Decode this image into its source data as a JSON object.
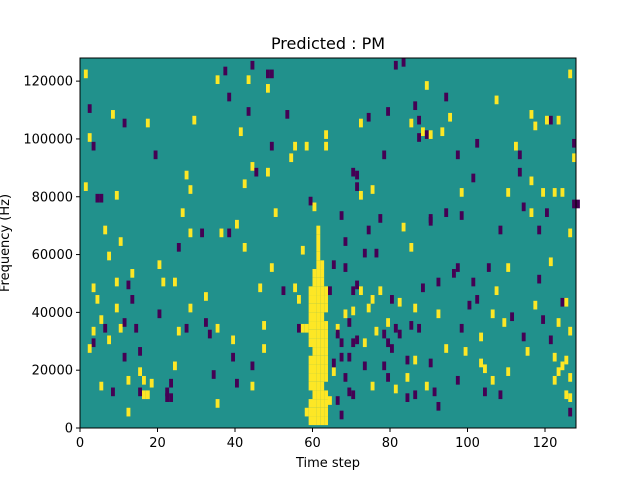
{
  "chart_data": {
    "type": "heatmap",
    "title": "Predicted : PM",
    "xlabel": "Time step",
    "ylabel": "Frequency (Hz)",
    "xlim": [
      0,
      128
    ],
    "ylim": [
      0,
      128000
    ],
    "xticks": [
      0,
      20,
      40,
      60,
      80,
      100,
      120
    ],
    "yticks": [
      0,
      20000,
      40000,
      60000,
      80000,
      100000,
      120000
    ],
    "colors": {
      "background": "#21918c",
      "high": "#fde725",
      "low": "#440154"
    },
    "n_time_steps": 128,
    "n_frequency_bins": 128,
    "cell_value_range": [
      -1,
      1
    ],
    "dense_band": {
      "time_steps": [
        59,
        63
      ],
      "frequency_max": 70000,
      "value": 1
    },
    "cells": [
      [
        1,
        123000,
        1
      ],
      [
        2,
        111000,
        -1
      ],
      [
        2,
        101000,
        1
      ],
      [
        3,
        98000,
        -1
      ],
      [
        3,
        49000,
        1
      ],
      [
        4,
        45000,
        1
      ],
      [
        1,
        84000,
        1
      ],
      [
        4,
        80000,
        -1
      ],
      [
        5,
        80000,
        -1
      ],
      [
        6,
        69000,
        1
      ],
      [
        7,
        60000,
        1
      ],
      [
        5,
        38000,
        1
      ],
      [
        3,
        34000,
        1
      ],
      [
        3,
        30000,
        -1
      ],
      [
        2,
        28000,
        1
      ],
      [
        6,
        35000,
        -1
      ],
      [
        7,
        31000,
        1
      ],
      [
        5,
        15000,
        1
      ],
      [
        8,
        13000,
        -1
      ],
      [
        8,
        109000,
        1
      ],
      [
        9,
        81000,
        1
      ],
      [
        10,
        65000,
        1
      ],
      [
        9,
        51000,
        1
      ],
      [
        9,
        42000,
        1
      ],
      [
        10,
        35000,
        1
      ],
      [
        11,
        37000,
        -1
      ],
      [
        11,
        25000,
        -1
      ],
      [
        12,
        6000,
        1
      ],
      [
        13,
        45000,
        -1
      ],
      [
        14,
        35000,
        -1
      ],
      [
        12,
        50000,
        -1
      ],
      [
        12,
        17000,
        1
      ],
      [
        13,
        54000,
        1
      ],
      [
        15,
        27000,
        -1
      ],
      [
        16,
        12000,
        1
      ],
      [
        16,
        17000,
        1
      ],
      [
        15,
        20000,
        1
      ],
      [
        15,
        13000,
        -1
      ],
      [
        11,
        106000,
        -1
      ],
      [
        17,
        106000,
        1
      ],
      [
        19,
        95000,
        -1
      ],
      [
        17,
        12000,
        1
      ],
      [
        18,
        16000,
        1
      ],
      [
        20,
        57000,
        1
      ],
      [
        20,
        40000,
        -1
      ],
      [
        21,
        51000,
        1
      ],
      [
        22,
        11000,
        -1
      ],
      [
        22,
        13000,
        -1
      ],
      [
        23,
        11000,
        -1
      ],
      [
        23,
        16000,
        -1
      ],
      [
        24,
        51000,
        1
      ],
      [
        25,
        34000,
        1
      ],
      [
        25,
        63000,
        -1
      ],
      [
        24,
        22000,
        1
      ],
      [
        26,
        75000,
        1
      ],
      [
        27,
        88000,
        1
      ],
      [
        27,
        35000,
        -1
      ],
      [
        28,
        83000,
        1
      ],
      [
        28,
        68000,
        1
      ],
      [
        28,
        42000,
        1
      ],
      [
        29,
        107000,
        1
      ],
      [
        31,
        68000,
        -1
      ],
      [
        32,
        37000,
        -1
      ],
      [
        32,
        46000,
        1
      ],
      [
        33,
        33000,
        -1
      ],
      [
        34,
        19000,
        -1
      ],
      [
        35,
        35000,
        1
      ],
      [
        35,
        9000,
        1
      ],
      [
        35,
        121000,
        1
      ],
      [
        36,
        68000,
        1
      ],
      [
        37,
        124000,
        -1
      ],
      [
        38,
        68000,
        -1
      ],
      [
        38,
        115000,
        -1
      ],
      [
        39,
        31000,
        1
      ],
      [
        39,
        25000,
        -1
      ],
      [
        40,
        71000,
        1
      ],
      [
        40,
        16000,
        -1
      ],
      [
        41,
        103000,
        1
      ],
      [
        42,
        85000,
        1
      ],
      [
        42,
        63000,
        1
      ],
      [
        43,
        121000,
        1
      ],
      [
        43,
        110000,
        -1
      ],
      [
        44,
        126000,
        -1
      ],
      [
        44,
        91000,
        1
      ],
      [
        44,
        22000,
        -1
      ],
      [
        45,
        89000,
        -1
      ],
      [
        44,
        15000,
        1
      ],
      [
        46,
        49000,
        1
      ],
      [
        47,
        36000,
        1
      ],
      [
        47,
        28000,
        1
      ],
      [
        48,
        118000,
        1
      ],
      [
        48,
        123000,
        -1
      ],
      [
        48,
        89000,
        1
      ],
      [
        49,
        123000,
        -1
      ],
      [
        49,
        98000,
        -1
      ],
      [
        49,
        56000,
        1
      ],
      [
        50,
        75000,
        1
      ],
      [
        52,
        48000,
        -1
      ],
      [
        53,
        109000,
        -1
      ],
      [
        55,
        98000,
        1
      ],
      [
        54,
        94000,
        1
      ],
      [
        55,
        49000,
        1
      ],
      [
        56,
        45000,
        1
      ],
      [
        56,
        35000,
        -1
      ],
      [
        57,
        35000,
        1
      ],
      [
        58,
        35000,
        1
      ],
      [
        57,
        62000,
        1
      ],
      [
        58,
        98000,
        1
      ],
      [
        59,
        79000,
        -1
      ],
      [
        60,
        77000,
        1
      ],
      [
        63,
        102000,
        1
      ],
      [
        63,
        98000,
        1
      ],
      [
        64,
        48000,
        -1
      ],
      [
        65,
        57000,
        -1
      ],
      [
        66,
        35000,
        1
      ],
      [
        66,
        33000,
        -1
      ],
      [
        67,
        30000,
        -1
      ],
      [
        67,
        25000,
        -1
      ],
      [
        68,
        56000,
        -1
      ],
      [
        68,
        18000,
        -1
      ],
      [
        69,
        37000,
        -1
      ],
      [
        69,
        25000,
        -1
      ],
      [
        69,
        13000,
        -1
      ],
      [
        70,
        48000,
        -1
      ],
      [
        70,
        41000,
        1
      ],
      [
        70,
        30000,
        -1
      ],
      [
        70,
        12000,
        -1
      ],
      [
        71,
        50000,
        -1
      ],
      [
        71,
        31000,
        -1
      ],
      [
        71,
        84000,
        -1
      ],
      [
        71,
        88000,
        -1
      ],
      [
        72,
        106000,
        1
      ],
      [
        72,
        81000,
        1
      ],
      [
        73,
        30000,
        1
      ],
      [
        73,
        22000,
        -1
      ],
      [
        74,
        108000,
        -1
      ],
      [
        74,
        69000,
        -1
      ],
      [
        74,
        42000,
        1
      ],
      [
        75,
        45000,
        1
      ],
      [
        75,
        15000,
        1
      ],
      [
        76,
        61000,
        -1
      ],
      [
        76,
        34000,
        1
      ],
      [
        77,
        73000,
        -1
      ],
      [
        77,
        48000,
        1
      ],
      [
        78,
        33000,
        -1
      ],
      [
        78,
        22000,
        -1
      ],
      [
        78,
        95000,
        -1
      ],
      [
        79,
        18000,
        -1
      ],
      [
        80,
        28000,
        -1
      ],
      [
        80,
        45000,
        -1
      ],
      [
        81,
        35000,
        -1
      ],
      [
        82,
        33000,
        -1
      ],
      [
        83,
        70000,
        1
      ],
      [
        84,
        24000,
        -1
      ],
      [
        84,
        18000,
        1
      ],
      [
        84,
        11000,
        -1
      ],
      [
        85,
        106000,
        1
      ],
      [
        85,
        36000,
        -1
      ],
      [
        86,
        112000,
        -1
      ],
      [
        86,
        42000,
        1
      ],
      [
        86,
        12000,
        -1
      ],
      [
        87,
        101000,
        -1
      ],
      [
        87,
        35000,
        -1
      ],
      [
        87,
        107000,
        -1
      ],
      [
        88,
        49000,
        -1
      ],
      [
        88,
        103000,
        1
      ],
      [
        89,
        102000,
        -1
      ],
      [
        89,
        15000,
        1
      ],
      [
        89,
        119000,
        1
      ],
      [
        90,
        102000,
        1
      ],
      [
        90,
        73000,
        -1
      ],
      [
        90,
        23000,
        -1
      ],
      [
        91,
        13000,
        -1
      ],
      [
        92,
        8000,
        -1
      ],
      [
        93,
        103000,
        1
      ],
      [
        94,
        28000,
        1
      ],
      [
        94,
        75000,
        -1
      ],
      [
        94,
        115000,
        -1
      ],
      [
        95,
        108000,
        1
      ],
      [
        97,
        56000,
        -1
      ],
      [
        97,
        17000,
        -1
      ],
      [
        97,
        95000,
        -1
      ],
      [
        98,
        35000,
        -1
      ],
      [
        98,
        82000,
        1
      ],
      [
        98,
        74000,
        -1
      ],
      [
        99,
        27000,
        1
      ],
      [
        101,
        87000,
        -1
      ],
      [
        102,
        99000,
        -1
      ],
      [
        102,
        45000,
        -1
      ],
      [
        103,
        32000,
        1
      ],
      [
        103,
        23000,
        1
      ],
      [
        105,
        56000,
        -1
      ],
      [
        106,
        17000,
        1
      ],
      [
        106,
        40000,
        1
      ],
      [
        107,
        114000,
        1
      ],
      [
        108,
        69000,
        -1
      ],
      [
        108,
        12000,
        -1
      ],
      [
        110,
        82000,
        1
      ],
      [
        109,
        37000,
        1
      ],
      [
        110,
        56000,
        1
      ],
      [
        110,
        20000,
        1
      ],
      [
        112,
        98000,
        1
      ],
      [
        113,
        89000,
        -1
      ],
      [
        113,
        95000,
        -1
      ],
      [
        114,
        77000,
        -1
      ],
      [
        114,
        32000,
        -1
      ],
      [
        115,
        27000,
        1
      ],
      [
        116,
        86000,
        1
      ],
      [
        116,
        75000,
        1
      ],
      [
        116,
        109000,
        1
      ],
      [
        117,
        43000,
        1
      ],
      [
        118,
        69000,
        -1
      ],
      [
        118,
        52000,
        -1
      ],
      [
        119,
        38000,
        -1
      ],
      [
        119,
        82000,
        1
      ],
      [
        120,
        75000,
        -1
      ],
      [
        121,
        107000,
        -1
      ],
      [
        121,
        58000,
        1
      ],
      [
        121,
        31000,
        -1
      ],
      [
        122,
        17000,
        1
      ],
      [
        122,
        25000,
        1
      ],
      [
        122,
        82000,
        1
      ],
      [
        123,
        37000,
        1
      ],
      [
        124,
        44000,
        -1
      ],
      [
        124,
        82000,
        1
      ],
      [
        125,
        44000,
        1
      ],
      [
        125,
        12000,
        1
      ],
      [
        126,
        68000,
        1
      ],
      [
        126,
        34000,
        1
      ],
      [
        126,
        18000,
        1
      ],
      [
        126,
        123000,
        1
      ],
      [
        127,
        99000,
        -1
      ],
      [
        127,
        78000,
        -1
      ],
      [
        127,
        94000,
        1
      ],
      [
        128,
        78000,
        -1
      ],
      [
        124,
        22000,
        1
      ],
      [
        123,
        20000,
        1
      ],
      [
        100,
        43000,
        -1
      ],
      [
        104,
        13000,
        -1
      ],
      [
        104,
        21000,
        1
      ],
      [
        96,
        54000,
        -1
      ],
      [
        92,
        40000,
        1
      ],
      [
        85,
        63000,
        1
      ],
      [
        82,
        44000,
        1
      ],
      [
        81,
        14000,
        1
      ],
      [
        86,
        24000,
        1
      ],
      [
        79,
        37000,
        1
      ],
      [
        79,
        30000,
        -1
      ],
      [
        73,
        61000,
        -1
      ],
      [
        72,
        48000,
        1
      ],
      [
        68,
        40000,
        1
      ],
      [
        65,
        20000,
        1
      ],
      [
        66,
        10000,
        -1
      ],
      [
        67,
        5000,
        -1
      ],
      [
        64,
        10000,
        1
      ],
      [
        65,
        23000,
        -1
      ],
      [
        58,
        6000,
        1
      ],
      [
        67,
        74000,
        -1
      ],
      [
        68,
        65000,
        -1
      ],
      [
        70,
        89000,
        -1
      ],
      [
        75,
        83000,
        1
      ],
      [
        79,
        110000,
        -1
      ],
      [
        81,
        126000,
        -1
      ],
      [
        83,
        127000,
        -1
      ],
      [
        90,
        72000,
        -1
      ],
      [
        92,
        51000,
        -1
      ],
      [
        101,
        51000,
        -1
      ],
      [
        107,
        48000,
        1
      ],
      [
        111,
        39000,
        -1
      ],
      [
        117,
        105000,
        1
      ],
      [
        120,
        107000,
        1
      ],
      [
        123,
        107000,
        1
      ],
      [
        125,
        24000,
        1
      ],
      [
        126,
        11000,
        1
      ],
      [
        126,
        6000,
        -1
      ]
    ]
  }
}
